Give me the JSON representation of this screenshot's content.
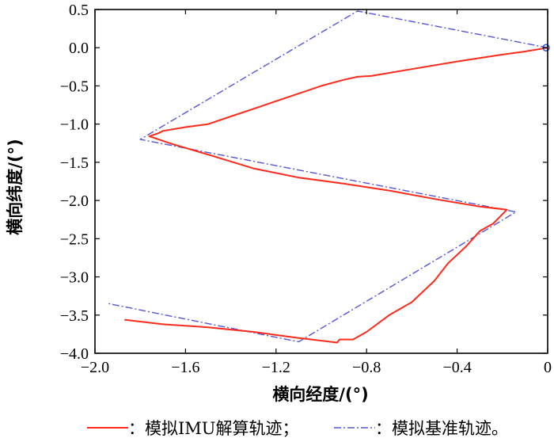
{
  "chart_data": {
    "type": "line",
    "xlabel": "横向经度/(°)",
    "ylabel": "横向纬度/(°)",
    "xlim": [
      -2.0,
      0.0
    ],
    "ylim": [
      -4.0,
      0.5
    ],
    "xticks": [
      "-2.0",
      "-1.6",
      "-1.2",
      "-0.8",
      "-0.4",
      "0"
    ],
    "yticks": [
      "0.5",
      "0.0",
      "-0.5",
      "-1.0",
      "-1.5",
      "-2.0",
      "-2.5",
      "-3.0",
      "-3.5",
      "-4.0"
    ],
    "grid": false,
    "legend_position": "bottom",
    "series": [
      {
        "name": "模拟IMU解算轨迹",
        "legend_text": "：模拟IMU解算轨迹；",
        "color": "#ff2a1a",
        "style": "solid",
        "x": [
          0.0,
          -0.1,
          -0.2,
          -0.4,
          -0.6,
          -0.78,
          -0.84,
          -0.9,
          -1.0,
          -1.1,
          -1.2,
          -1.3,
          -1.4,
          -1.5,
          -1.6,
          -1.7,
          -1.72,
          -1.76,
          -1.66,
          -1.5,
          -1.3,
          -1.1,
          -0.9,
          -0.7,
          -0.5,
          -0.3,
          -0.18,
          -0.24,
          -0.3,
          -0.36,
          -0.44,
          -0.5,
          -0.6,
          -0.7,
          -0.8,
          -0.86,
          -0.92,
          -0.93,
          -1.1,
          -1.3,
          -1.5,
          -1.7,
          -1.87
        ],
        "y": [
          0.0,
          -0.05,
          -0.09,
          -0.18,
          -0.28,
          -0.37,
          -0.38,
          -0.42,
          -0.5,
          -0.6,
          -0.7,
          -0.8,
          -0.9,
          -1.0,
          -1.04,
          -1.09,
          -1.12,
          -1.16,
          -1.26,
          -1.4,
          -1.58,
          -1.7,
          -1.78,
          -1.87,
          -1.98,
          -2.08,
          -2.12,
          -2.3,
          -2.4,
          -2.6,
          -2.82,
          -3.05,
          -3.33,
          -3.5,
          -3.72,
          -3.82,
          -3.82,
          -3.86,
          -3.8,
          -3.72,
          -3.66,
          -3.62,
          -3.56
        ]
      },
      {
        "name": "模拟基准轨迹",
        "legend_text": "：模拟基准轨迹。",
        "color": "#5555dd",
        "style": "dashdot",
        "x": [
          0.0,
          -0.84,
          -1.8,
          -0.14,
          -1.1,
          -1.94
        ],
        "y": [
          0.0,
          0.48,
          -1.2,
          -2.15,
          -3.85,
          -3.35
        ]
      }
    ],
    "start_marker": {
      "x": 0.0,
      "y": 0.0,
      "color": "#3355cc"
    }
  }
}
